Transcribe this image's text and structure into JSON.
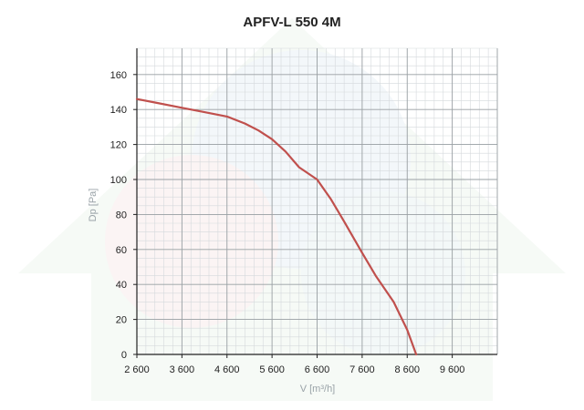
{
  "chart_data": {
    "type": "line",
    "title": "APFV-L 550 4M",
    "xlabel": "V [m³/h]",
    "ylabel": "Dp [Pa]",
    "xlim": [
      2600,
      10600
    ],
    "ylim": [
      0,
      175
    ],
    "x_ticks": [
      2600,
      3600,
      4600,
      5600,
      6600,
      7600,
      8600,
      9600
    ],
    "x_tick_labels": [
      "2 600",
      "3 600",
      "4 600",
      "5 600",
      "6 600",
      "7 600",
      "8 600",
      "9 600"
    ],
    "y_ticks": [
      0,
      20,
      40,
      60,
      80,
      100,
      120,
      140,
      160
    ],
    "y_tick_labels": [
      "0",
      "20",
      "40",
      "60",
      "80",
      "100",
      "120",
      "140",
      "160"
    ],
    "grid": true,
    "series": [
      {
        "color": "#c0504d",
        "x": [
          2600,
          3000,
          3600,
          4100,
          4600,
          5000,
          5300,
          5600,
          5900,
          6200,
          6600,
          6900,
          7200,
          7600,
          7900,
          8300,
          8600,
          8800
        ],
        "y": [
          146,
          144,
          141,
          138.5,
          136,
          132,
          128,
          123,
          116,
          107,
          100,
          89,
          76,
          58,
          45,
          30,
          14,
          0
        ]
      }
    ]
  },
  "colors": {
    "major_grid": "#9aa0a4",
    "minor_grid": "#d5d9dc",
    "axis": "#222222"
  }
}
